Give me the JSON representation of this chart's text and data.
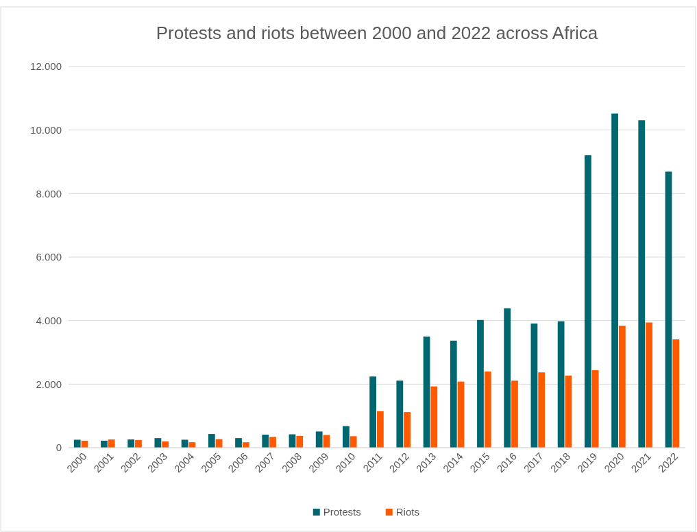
{
  "chart_data": {
    "type": "bar",
    "title": "Protests and riots between 2000 and 2022 across Africa",
    "categories": [
      "2000",
      "2001",
      "2002",
      "2003",
      "2004",
      "2005",
      "2006",
      "2007",
      "2008",
      "2009",
      "2010",
      "2011",
      "2012",
      "2013",
      "2014",
      "2015",
      "2016",
      "2017",
      "2018",
      "2019",
      "2020",
      "2021",
      "2022"
    ],
    "series": [
      {
        "name": "Protests",
        "color": "#006670",
        "values": [
          250,
          220,
          260,
          300,
          250,
          430,
          300,
          410,
          420,
          510,
          680,
          2240,
          2110,
          3500,
          3370,
          4020,
          4390,
          3910,
          3980,
          9210,
          10520,
          10310,
          8690
        ]
      },
      {
        "name": "Riots",
        "color": "#ff5a00",
        "values": [
          220,
          260,
          240,
          200,
          170,
          270,
          170,
          340,
          370,
          400,
          360,
          1150,
          1120,
          1930,
          2080,
          2400,
          2110,
          2370,
          2270,
          2440,
          3840,
          3940,
          3410
        ]
      }
    ],
    "ylim": [
      0,
      12000
    ],
    "yticks": [
      {
        "value": 0,
        "label": "0"
      },
      {
        "value": 2000,
        "label": "2.000"
      },
      {
        "value": 4000,
        "label": "4.000"
      },
      {
        "value": 6000,
        "label": "6.000"
      },
      {
        "value": 8000,
        "label": "8.000"
      },
      {
        "value": 10000,
        "label": "10.000"
      },
      {
        "value": 12000,
        "label": "12.000"
      }
    ],
    "grid": "y",
    "legend": "bottom"
  }
}
